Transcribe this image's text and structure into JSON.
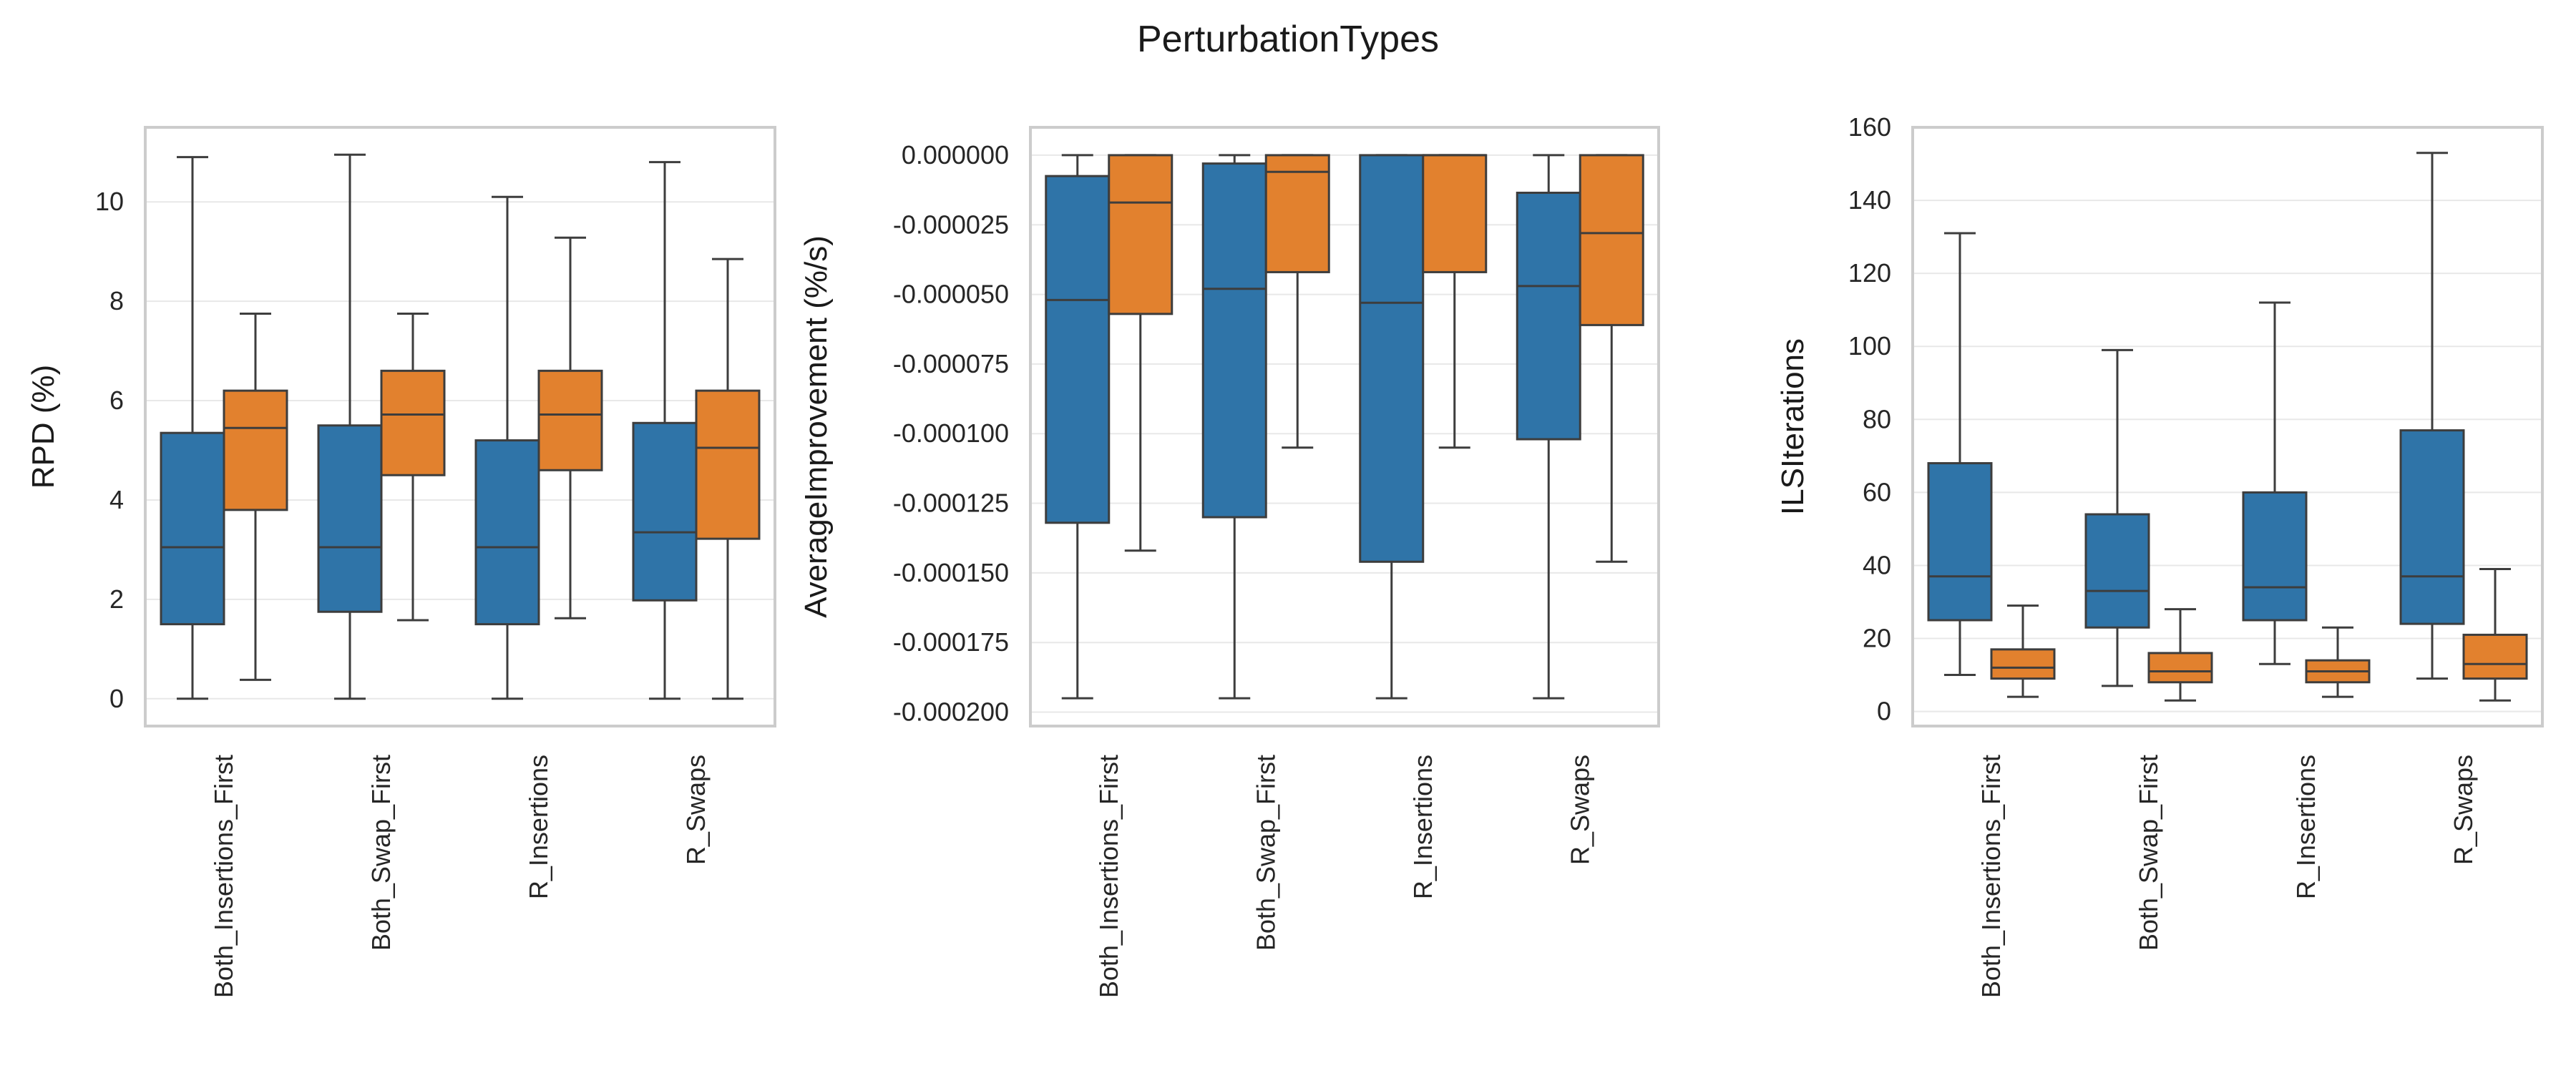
{
  "figure": {
    "title": "PerturbationTypes",
    "series_colors": [
      "#2f74a8",
      "#e2812e"
    ],
    "edge_color": "#3d3d3d",
    "grid_color": "#e8e8e8",
    "frame_color": "#cccccc"
  },
  "chart_data": [
    {
      "type": "box",
      "ylabel": "RPD (%)",
      "ylim": [
        -0.55,
        11.5
      ],
      "yticks": [
        0,
        2,
        4,
        6,
        8,
        10
      ],
      "ytick_labels": [
        "0",
        "2",
        "4",
        "6",
        "8",
        "10"
      ],
      "grid": true,
      "categories": [
        "Both_Insertions_First",
        "Both_Swap_First",
        "R_Insertions",
        "R_Swaps"
      ],
      "series": [
        {
          "boxes": [
            {
              "whislo": 0.0,
              "q1": 1.5,
              "med": 3.05,
              "q3": 5.35,
              "whishi": 10.9
            },
            {
              "whislo": 0.0,
              "q1": 1.75,
              "med": 3.05,
              "q3": 5.5,
              "whishi": 10.95
            },
            {
              "whislo": 0.0,
              "q1": 1.5,
              "med": 3.05,
              "q3": 5.2,
              "whishi": 10.1
            },
            {
              "whislo": 0.0,
              "q1": 1.98,
              "med": 3.35,
              "q3": 5.55,
              "whishi": 10.8
            }
          ]
        },
        {
          "boxes": [
            {
              "whislo": 0.38,
              "q1": 3.8,
              "med": 5.45,
              "q3": 6.2,
              "whishi": 7.75
            },
            {
              "whislo": 1.58,
              "q1": 4.5,
              "med": 5.72,
              "q3": 6.6,
              "whishi": 7.75
            },
            {
              "whislo": 1.62,
              "q1": 4.6,
              "med": 5.72,
              "q3": 6.6,
              "whishi": 9.28
            },
            {
              "whislo": 0.0,
              "q1": 3.22,
              "med": 5.05,
              "q3": 6.2,
              "whishi": 8.85
            }
          ]
        }
      ]
    },
    {
      "type": "box",
      "ylabel": "AverageImprovement (%/s)",
      "ylim": [
        -0.000205,
        1e-05
      ],
      "yticks": [
        0,
        -2.5e-05,
        -5e-05,
        -7.5e-05,
        -0.0001,
        -0.000125,
        -0.00015,
        -0.000175,
        -0.0002
      ],
      "ytick_labels": [
        "0.000000",
        "-0.000025",
        "-0.000050",
        "-0.000075",
        "-0.000100",
        "-0.000125",
        "-0.000150",
        "-0.000175",
        "-0.000200"
      ],
      "grid": true,
      "categories": [
        "Both_Insertions_First",
        "Both_Swap_First",
        "R_Insertions",
        "R_Swaps"
      ],
      "series": [
        {
          "boxes": [
            {
              "whislo": -0.000195,
              "q1": -0.000132,
              "med": -5.2e-05,
              "q3": -7.5e-06,
              "whishi": 0.0
            },
            {
              "whislo": -0.000195,
              "q1": -0.00013,
              "med": -4.8e-05,
              "q3": -3e-06,
              "whishi": 0.0
            },
            {
              "whislo": -0.000195,
              "q1": -0.000146,
              "med": -5.3e-05,
              "q3": 0.0,
              "whishi": 0.0
            },
            {
              "whislo": -0.000195,
              "q1": -0.000102,
              "med": -4.7e-05,
              "q3": -1.35e-05,
              "whishi": 0.0
            }
          ]
        },
        {
          "boxes": [
            {
              "whislo": -0.000142,
              "q1": -5.7e-05,
              "med": -1.7e-05,
              "q3": 0.0,
              "whishi": 0.0
            },
            {
              "whislo": -0.000105,
              "q1": -4.2e-05,
              "med": -6e-06,
              "q3": 0.0,
              "whishi": 0.0
            },
            {
              "whislo": -0.000105,
              "q1": -4.2e-05,
              "med": 0.0,
              "q3": 0.0,
              "whishi": 0.0
            },
            {
              "whislo": -0.000146,
              "q1": -6.1e-05,
              "med": -2.8e-05,
              "q3": 0.0,
              "whishi": 0.0
            }
          ]
        }
      ]
    },
    {
      "type": "box",
      "ylabel": "ILSIterations",
      "ylim": [
        -4,
        160
      ],
      "yticks": [
        0,
        20,
        40,
        60,
        80,
        100,
        120,
        140,
        160
      ],
      "ytick_labels": [
        "0",
        "20",
        "40",
        "60",
        "80",
        "100",
        "120",
        "140",
        "160"
      ],
      "grid": true,
      "categories": [
        "Both_Insertions_First",
        "Both_Swap_First",
        "R_Insertions",
        "R_Swaps"
      ],
      "series": [
        {
          "boxes": [
            {
              "whislo": 10,
              "q1": 25,
              "med": 37,
              "q3": 68,
              "whishi": 131
            },
            {
              "whislo": 7,
              "q1": 23,
              "med": 33,
              "q3": 54,
              "whishi": 99
            },
            {
              "whislo": 13,
              "q1": 25,
              "med": 34,
              "q3": 60,
              "whishi": 112
            },
            {
              "whislo": 9,
              "q1": 24,
              "med": 37,
              "q3": 77,
              "whishi": 153
            }
          ]
        },
        {
          "boxes": [
            {
              "whislo": 4,
              "q1": 9,
              "med": 12,
              "q3": 17,
              "whishi": 29
            },
            {
              "whislo": 3,
              "q1": 8,
              "med": 11,
              "q3": 16,
              "whishi": 28
            },
            {
              "whislo": 4,
              "q1": 8,
              "med": 11,
              "q3": 14,
              "whishi": 23
            },
            {
              "whislo": 3,
              "q1": 9,
              "med": 13,
              "q3": 21,
              "whishi": 39
            }
          ]
        }
      ]
    }
  ]
}
